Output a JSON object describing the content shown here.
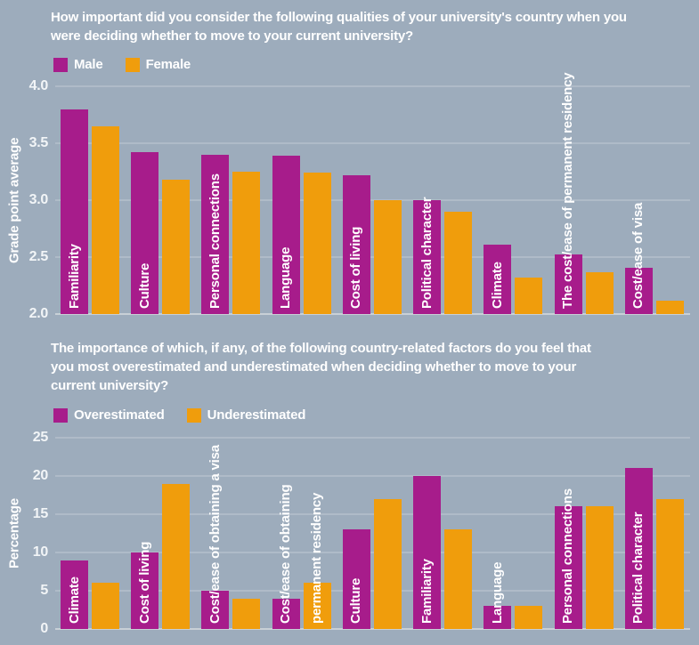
{
  "page": {
    "background": "#9DACBC"
  },
  "colors": {
    "series1": "#A71C8B",
    "series2": "#F09D0C",
    "grid": "#AFBBC8",
    "baseline": "#C8CFD6",
    "text": "#FFFFFF"
  },
  "chart_data": [
    {
      "type": "bar",
      "title": "How important did you consider the following qualities of your university's country when you\nwere deciding whether to move to your current university?",
      "ylabel": "Grade point average",
      "xlabel": "",
      "ylim": [
        2.0,
        4.0
      ],
      "yticks": [
        "4.0",
        "3.5",
        "3.0",
        "2.5",
        "2.0"
      ],
      "grid": true,
      "legend_position": "top-left",
      "legend": [
        "Male",
        "Female"
      ],
      "categories": [
        "Familiarity",
        "Culture",
        "Personal connections",
        "Language",
        "Cost of living",
        "Political character",
        "Climate",
        "The cost/ease of permanent residency",
        "Cost/ease of visa"
      ],
      "series": [
        {
          "name": "Male",
          "color_key": "series1",
          "values": [
            3.8,
            3.42,
            3.4,
            3.39,
            3.22,
            3.0,
            2.61,
            2.52,
            2.41
          ]
        },
        {
          "name": "Female",
          "color_key": "series2",
          "values": [
            3.65,
            3.18,
            3.25,
            3.24,
            3.0,
            2.9,
            2.32,
            2.37,
            2.12
          ]
        }
      ]
    },
    {
      "type": "bar",
      "title": "The importance of which, if any, of the following country-related factors do you feel that\nyou most overestimated and underestimated when deciding whether to move to your\ncurrent university?",
      "ylabel": "Percentage",
      "xlabel": "",
      "ylim": [
        0,
        25
      ],
      "yticks": [
        "25",
        "20",
        "15",
        "10",
        "5",
        "0"
      ],
      "grid": true,
      "legend_position": "top-left",
      "legend": [
        "Overestimated",
        "Underestimated"
      ],
      "categories": [
        "Climate",
        "Cost of living",
        "Cost/ease of obtaining a visa",
        [
          "Cost/ease of obtaining",
          "permanent residency"
        ],
        "Culture",
        "Familiarity",
        "Language",
        "Personal connections",
        "Political character"
      ],
      "series": [
        {
          "name": "Overestimated",
          "color_key": "series1",
          "values": [
            9,
            10,
            5,
            4,
            13,
            20,
            3,
            16,
            21
          ]
        },
        {
          "name": "Underestimated",
          "color_key": "series2",
          "values": [
            6,
            19,
            4,
            6,
            17,
            13,
            3,
            16,
            17
          ]
        }
      ]
    }
  ]
}
